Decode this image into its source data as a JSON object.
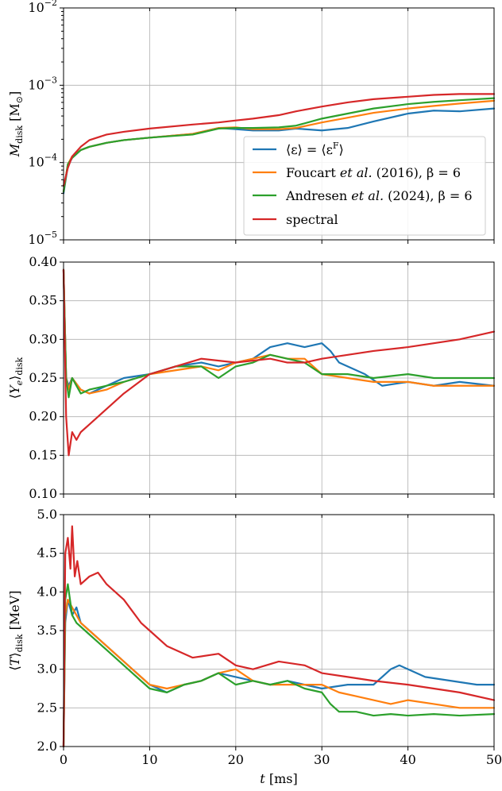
{
  "chart_data": [
    {
      "type": "line",
      "ylabel": "M_disk [M_⊙]",
      "yscale": "log",
      "ylim": [
        1e-05,
        0.01
      ],
      "xlim": [
        0,
        50
      ],
      "yticks": [
        "10^-5",
        "10^-4",
        "10^-3",
        "10^-2"
      ],
      "xticks": [
        0,
        10,
        20,
        30,
        40,
        50
      ],
      "grid": true,
      "legend": "lower-right",
      "series": [
        {
          "name": "⟨ε⟩ = ⟨ε^F⟩",
          "color": "#1f77b4",
          "x": [
            0,
            0.5,
            1,
            2,
            3,
            5,
            7,
            10,
            15,
            18,
            20,
            22,
            25,
            27,
            30,
            33,
            36,
            40,
            43,
            46,
            50
          ],
          "y": [
            4e-05,
            9e-05,
            0.000115,
            0.000145,
            0.00016,
            0.00018,
            0.000195,
            0.00021,
            0.000235,
            0.00028,
            0.00027,
            0.00026,
            0.00026,
            0.000275,
            0.00026,
            0.00028,
            0.00034,
            0.00043,
            0.00047,
            0.00046,
            0.0005
          ]
        },
        {
          "name": "Foucart et al. (2016), β = 6",
          "color": "#ff7f0e",
          "x": [
            0,
            0.5,
            1,
            2,
            3,
            5,
            7,
            10,
            15,
            18,
            20,
            22,
            25,
            27,
            30,
            33,
            36,
            40,
            43,
            46,
            50
          ],
          "y": [
            4.2e-05,
            9.5e-05,
            0.00012,
            0.000145,
            0.00016,
            0.00018,
            0.000195,
            0.00021,
            0.000235,
            0.00028,
            0.000285,
            0.00027,
            0.00027,
            0.00028,
            0.00033,
            0.00038,
            0.00044,
            0.0005,
            0.00054,
            0.00058,
            0.00063
          ]
        },
        {
          "name": "Andresen et al. (2024), β = 6",
          "color": "#2ca02c",
          "x": [
            0,
            0.5,
            1,
            2,
            3,
            5,
            7,
            10,
            15,
            18,
            20,
            22,
            25,
            27,
            30,
            33,
            36,
            40,
            43,
            46,
            50
          ],
          "y": [
            4.2e-05,
            9.5e-05,
            0.000115,
            0.000145,
            0.00016,
            0.00018,
            0.000195,
            0.00021,
            0.00023,
            0.000275,
            0.00028,
            0.00028,
            0.000285,
            0.0003,
            0.00037,
            0.00043,
            0.0005,
            0.00057,
            0.00061,
            0.00064,
            0.00068
          ]
        },
        {
          "name": "spectral",
          "color": "#d62728",
          "x": [
            0,
            0.5,
            1,
            2,
            3,
            5,
            7,
            10,
            15,
            18,
            20,
            22,
            25,
            27,
            30,
            33,
            36,
            40,
            43,
            46,
            50
          ],
          "y": [
            5e-05,
            8.5e-05,
            0.00012,
            0.00016,
            0.000195,
            0.00023,
            0.00025,
            0.000275,
            0.00031,
            0.00033,
            0.00035,
            0.00037,
            0.00041,
            0.00046,
            0.00053,
            0.0006,
            0.00066,
            0.00071,
            0.00075,
            0.00077,
            0.00077
          ]
        }
      ]
    },
    {
      "type": "line",
      "ylabel": "⟨Y_e⟩_disk",
      "ylim": [
        0.1,
        0.4
      ],
      "xlim": [
        0,
        50
      ],
      "yticks": [
        "0.10",
        "0.15",
        "0.20",
        "0.25",
        "0.30",
        "0.35",
        "0.40"
      ],
      "xticks": [
        0,
        10,
        20,
        30,
        40,
        50
      ],
      "grid": true,
      "series": [
        {
          "name": "⟨ε⟩ = ⟨ε^F⟩",
          "color": "#1f77b4",
          "x": [
            0,
            0.3,
            0.6,
            1,
            2,
            3,
            5,
            7,
            10,
            13,
            16,
            18,
            20,
            22,
            24,
            26,
            28,
            30,
            31,
            32,
            33,
            35,
            37,
            40,
            43,
            46,
            50
          ],
          "y": [
            0.39,
            0.25,
            0.24,
            0.25,
            0.235,
            0.23,
            0.24,
            0.25,
            0.255,
            0.265,
            0.27,
            0.265,
            0.27,
            0.275,
            0.29,
            0.295,
            0.29,
            0.295,
            0.285,
            0.27,
            0.265,
            0.255,
            0.24,
            0.245,
            0.24,
            0.245,
            0.24
          ]
        },
        {
          "name": "Foucart et al. (2016), β = 6",
          "color": "#ff7f0e",
          "x": [
            0,
            0.3,
            0.6,
            1,
            2,
            3,
            5,
            7,
            10,
            13,
            16,
            18,
            20,
            22,
            24,
            26,
            28,
            30,
            33,
            36,
            40,
            43,
            46,
            50
          ],
          "y": [
            0.39,
            0.25,
            0.235,
            0.25,
            0.235,
            0.23,
            0.235,
            0.245,
            0.255,
            0.26,
            0.265,
            0.26,
            0.27,
            0.275,
            0.28,
            0.275,
            0.275,
            0.255,
            0.25,
            0.245,
            0.245,
            0.24,
            0.24,
            0.24
          ]
        },
        {
          "name": "Andresen et al. (2024), β = 6",
          "color": "#2ca02c",
          "x": [
            0,
            0.3,
            0.6,
            1,
            2,
            3,
            5,
            7,
            10,
            13,
            16,
            18,
            20,
            22,
            24,
            26,
            28,
            30,
            33,
            36,
            40,
            43,
            46,
            50
          ],
          "y": [
            0.39,
            0.25,
            0.225,
            0.25,
            0.23,
            0.235,
            0.24,
            0.245,
            0.255,
            0.265,
            0.265,
            0.25,
            0.265,
            0.27,
            0.28,
            0.275,
            0.27,
            0.255,
            0.255,
            0.25,
            0.255,
            0.25,
            0.25,
            0.25
          ]
        },
        {
          "name": "spectral",
          "color": "#d62728",
          "x": [
            0,
            0.3,
            0.6,
            1,
            1.5,
            2,
            3,
            4,
            5,
            7,
            10,
            13,
            16,
            20,
            24,
            26,
            28,
            30,
            33,
            36,
            40,
            43,
            46,
            50
          ],
          "y": [
            0.39,
            0.2,
            0.15,
            0.18,
            0.17,
            0.18,
            0.19,
            0.2,
            0.21,
            0.23,
            0.255,
            0.265,
            0.275,
            0.27,
            0.275,
            0.27,
            0.27,
            0.275,
            0.28,
            0.285,
            0.29,
            0.295,
            0.3,
            0.31
          ]
        }
      ]
    },
    {
      "type": "line",
      "ylabel": "⟨T⟩_disk [MeV]",
      "xlabel": "t [ms]",
      "ylim": [
        2.0,
        5.0
      ],
      "xlim": [
        0,
        50
      ],
      "yticks": [
        "2.0",
        "2.5",
        "3.0",
        "3.5",
        "4.0",
        "4.5",
        "5.0"
      ],
      "xticks": [
        "0",
        "10",
        "20",
        "30",
        "40",
        "50"
      ],
      "grid": true,
      "series": [
        {
          "name": "⟨ε⟩ = ⟨ε^F⟩",
          "color": "#1f77b4",
          "x": [
            0,
            0.2,
            0.5,
            1,
            1.5,
            2,
            3,
            4,
            5,
            6,
            7,
            8,
            10,
            12,
            14,
            16,
            18,
            20,
            22,
            24,
            26,
            28,
            30,
            33,
            36,
            38,
            39,
            40,
            42,
            45,
            48,
            50
          ],
          "y": [
            2.0,
            3.6,
            3.9,
            3.7,
            3.8,
            3.6,
            3.5,
            3.4,
            3.3,
            3.2,
            3.1,
            3.0,
            2.8,
            2.7,
            2.8,
            2.85,
            2.95,
            2.9,
            2.85,
            2.8,
            2.85,
            2.8,
            2.75,
            2.8,
            2.8,
            3.0,
            3.05,
            3.0,
            2.9,
            2.85,
            2.8,
            2.8
          ]
        },
        {
          "name": "Foucart et al. (2016), β = 6",
          "color": "#ff7f0e",
          "x": [
            0,
            0.2,
            0.5,
            1,
            1.5,
            2,
            3,
            4,
            5,
            6,
            7,
            8,
            10,
            12,
            14,
            16,
            18,
            20,
            22,
            24,
            26,
            28,
            30,
            32,
            34,
            36,
            38,
            40,
            43,
            46,
            50
          ],
          "y": [
            2.0,
            3.7,
            3.9,
            3.8,
            3.7,
            3.6,
            3.5,
            3.4,
            3.3,
            3.2,
            3.1,
            3.0,
            2.8,
            2.75,
            2.8,
            2.85,
            2.95,
            3.0,
            2.85,
            2.8,
            2.8,
            2.8,
            2.8,
            2.7,
            2.65,
            2.6,
            2.55,
            2.6,
            2.55,
            2.5,
            2.5
          ]
        },
        {
          "name": "Andresen et al. (2024), β = 6",
          "color": "#2ca02c",
          "x": [
            0,
            0.2,
            0.5,
            1,
            1.5,
            2,
            3,
            4,
            5,
            6,
            7,
            8,
            10,
            12,
            14,
            16,
            18,
            20,
            22,
            24,
            26,
            28,
            30,
            31,
            32,
            34,
            36,
            38,
            40,
            43,
            46,
            50
          ],
          "y": [
            2.0,
            3.9,
            4.1,
            3.7,
            3.6,
            3.55,
            3.45,
            3.35,
            3.25,
            3.15,
            3.05,
            2.95,
            2.75,
            2.7,
            2.8,
            2.85,
            2.95,
            2.8,
            2.85,
            2.8,
            2.85,
            2.75,
            2.7,
            2.55,
            2.45,
            2.45,
            2.4,
            2.42,
            2.4,
            2.42,
            2.4,
            2.42
          ]
        },
        {
          "name": "spectral",
          "color": "#d62728",
          "x": [
            0,
            0.2,
            0.5,
            0.8,
            1,
            1.3,
            1.6,
            2,
            3,
            4,
            5,
            6,
            7,
            8,
            9,
            10,
            12,
            15,
            18,
            20,
            22,
            25,
            28,
            30,
            33,
            36,
            40,
            43,
            46,
            50
          ],
          "y": [
            2.0,
            4.5,
            4.7,
            4.3,
            4.85,
            4.2,
            4.4,
            4.1,
            4.2,
            4.25,
            4.1,
            4.0,
            3.9,
            3.75,
            3.6,
            3.5,
            3.3,
            3.15,
            3.2,
            3.05,
            3.0,
            3.1,
            3.05,
            2.95,
            2.9,
            2.85,
            2.8,
            2.75,
            2.7,
            2.6
          ]
        }
      ]
    }
  ],
  "legend": {
    "entries": [
      {
        "label_main": "⟨ε⟩ = ⟨ε",
        "label_sup": "F",
        "label_end": "⟩",
        "color": "#1f77b4"
      },
      {
        "label_a": "Foucart ",
        "label_b": "et al.",
        "label_c": " (2016), β = 6",
        "color": "#ff7f0e"
      },
      {
        "label_a": "Andresen ",
        "label_b": "et al.",
        "label_c": " (2024), β = 6",
        "color": "#2ca02c"
      },
      {
        "label_a": "spectral",
        "color": "#d62728"
      }
    ]
  }
}
